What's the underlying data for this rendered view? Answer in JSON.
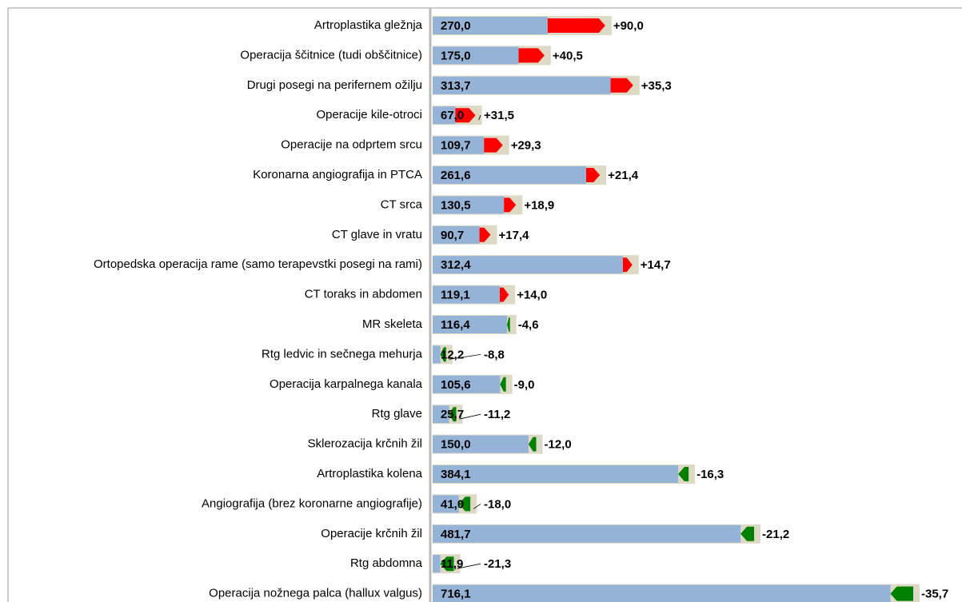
{
  "chart_data": {
    "type": "bar",
    "categories": [
      "Artroplastika gležnja",
      "Operacija ščitnice (tudi obščitnice)",
      "Drugi posegi na perifernem ožilju",
      "Operacije kile-otroci",
      "Operacije na odprtem srcu",
      "Koronarna angiografija in PTCA",
      "CT srca",
      "CT glave in vratu",
      "Ortopedska operacija rame (samo terapevstki posegi na rami)",
      "CT toraks in abdomen",
      "MR skeleta",
      "Rtg ledvic in sečnega mehurja",
      "Operacija karpalnega kanala",
      "Rtg glave",
      "Sklerozacija krčnih žil",
      "Artroplastika kolena",
      "Angiografija (brez koronarne angiografije)",
      "Operacije krčnih žil",
      "Rtg abdomna",
      "Operacija nožnega palca (hallux valgus)"
    ],
    "values": [
      270.0,
      175.0,
      313.7,
      67.0,
      109.7,
      261.6,
      130.5,
      90.7,
      312.4,
      119.1,
      116.4,
      12.2,
      105.6,
      25.7,
      150.0,
      384.1,
      41.0,
      481.7,
      11.9,
      716.1
    ],
    "value_labels": [
      "270,0",
      "175,0",
      "313,7",
      "67,0",
      "109,7",
      "261,6",
      "130,5",
      "90,7",
      "312,4",
      "119,1",
      "116,4",
      "12,2",
      "105,6",
      "25,7",
      "150,0",
      "384,1",
      "41,0",
      "481,7",
      "11,9",
      "716,1"
    ],
    "changes": [
      90.0,
      40.5,
      35.3,
      31.5,
      29.3,
      21.4,
      18.9,
      17.4,
      14.7,
      14.0,
      -4.6,
      -8.8,
      -9.0,
      -11.2,
      -12.0,
      -16.3,
      -18.0,
      -21.2,
      -21.3,
      -35.7
    ],
    "change_labels": [
      "+90,0",
      "+40,5",
      "+35,3",
      "+31,5",
      "+29,3",
      "+21,4",
      "+18,9",
      "+17,4",
      "+14,7",
      "+14,0",
      "-4,6",
      "-8,8",
      "-9,0",
      "-11,2",
      "-12,0",
      "-16,3",
      "-18,0",
      "-21,2",
      "-21,3",
      "-35,7"
    ],
    "color": "#95b3d7",
    "increase_color": "#ff0000",
    "decrease_color": "#008000",
    "background_color": "#ddd9c4"
  }
}
